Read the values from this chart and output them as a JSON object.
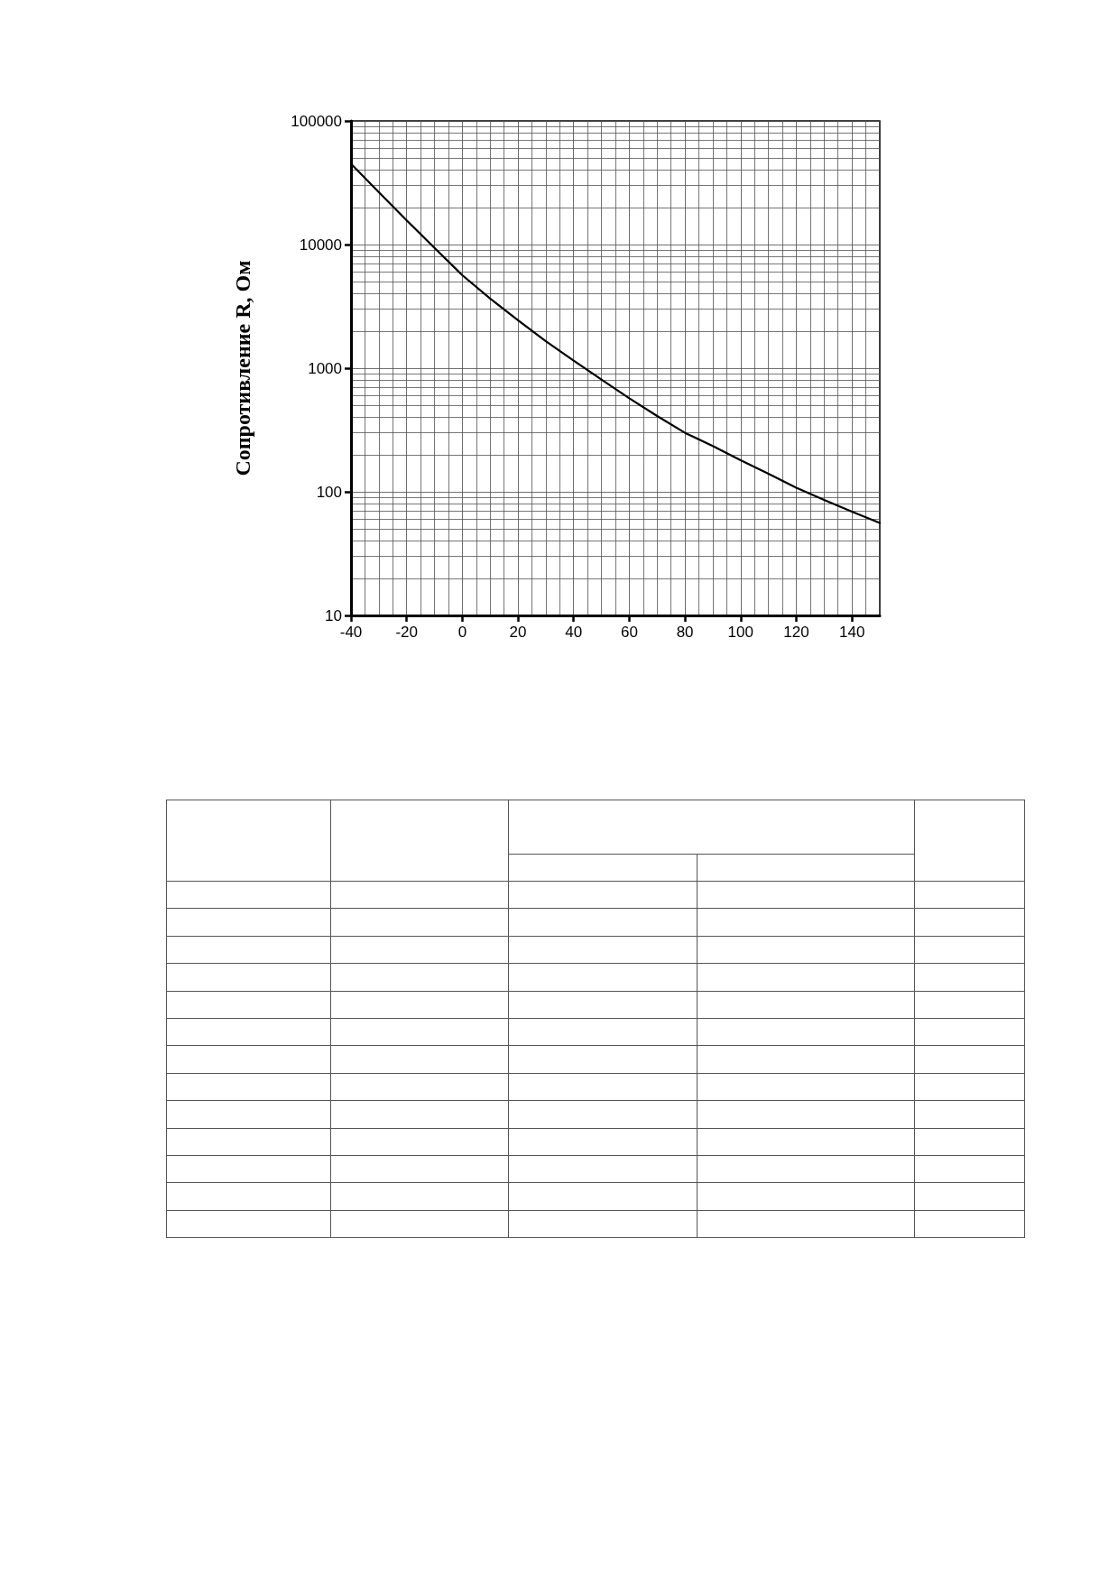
{
  "chart_data": {
    "type": "line",
    "ylabel": "Сопротивление R, Ом",
    "x": [
      -40,
      -30,
      -20,
      -10,
      0,
      10,
      20,
      30,
      40,
      50,
      60,
      70,
      80,
      90,
      100,
      110,
      120,
      130,
      140,
      150
    ],
    "series": [
      {
        "color": "#000000",
        "values": [
          45000,
          26500,
          15700,
          9400,
          5650,
          3650,
          2440,
          1650,
          1150,
          810,
          570,
          410,
          300,
          235,
          180,
          140,
          108,
          86,
          69,
          56
        ]
      }
    ],
    "xlim": [
      -40,
      150
    ],
    "ylim": [
      10,
      100000
    ],
    "xticks": [
      -40,
      -20,
      0,
      20,
      40,
      60,
      80,
      100,
      120,
      140
    ],
    "yticks": [
      10,
      100,
      1000,
      10000,
      100000
    ],
    "log": "y",
    "grid": true,
    "marker": "none",
    "line_style": "solid"
  }
}
